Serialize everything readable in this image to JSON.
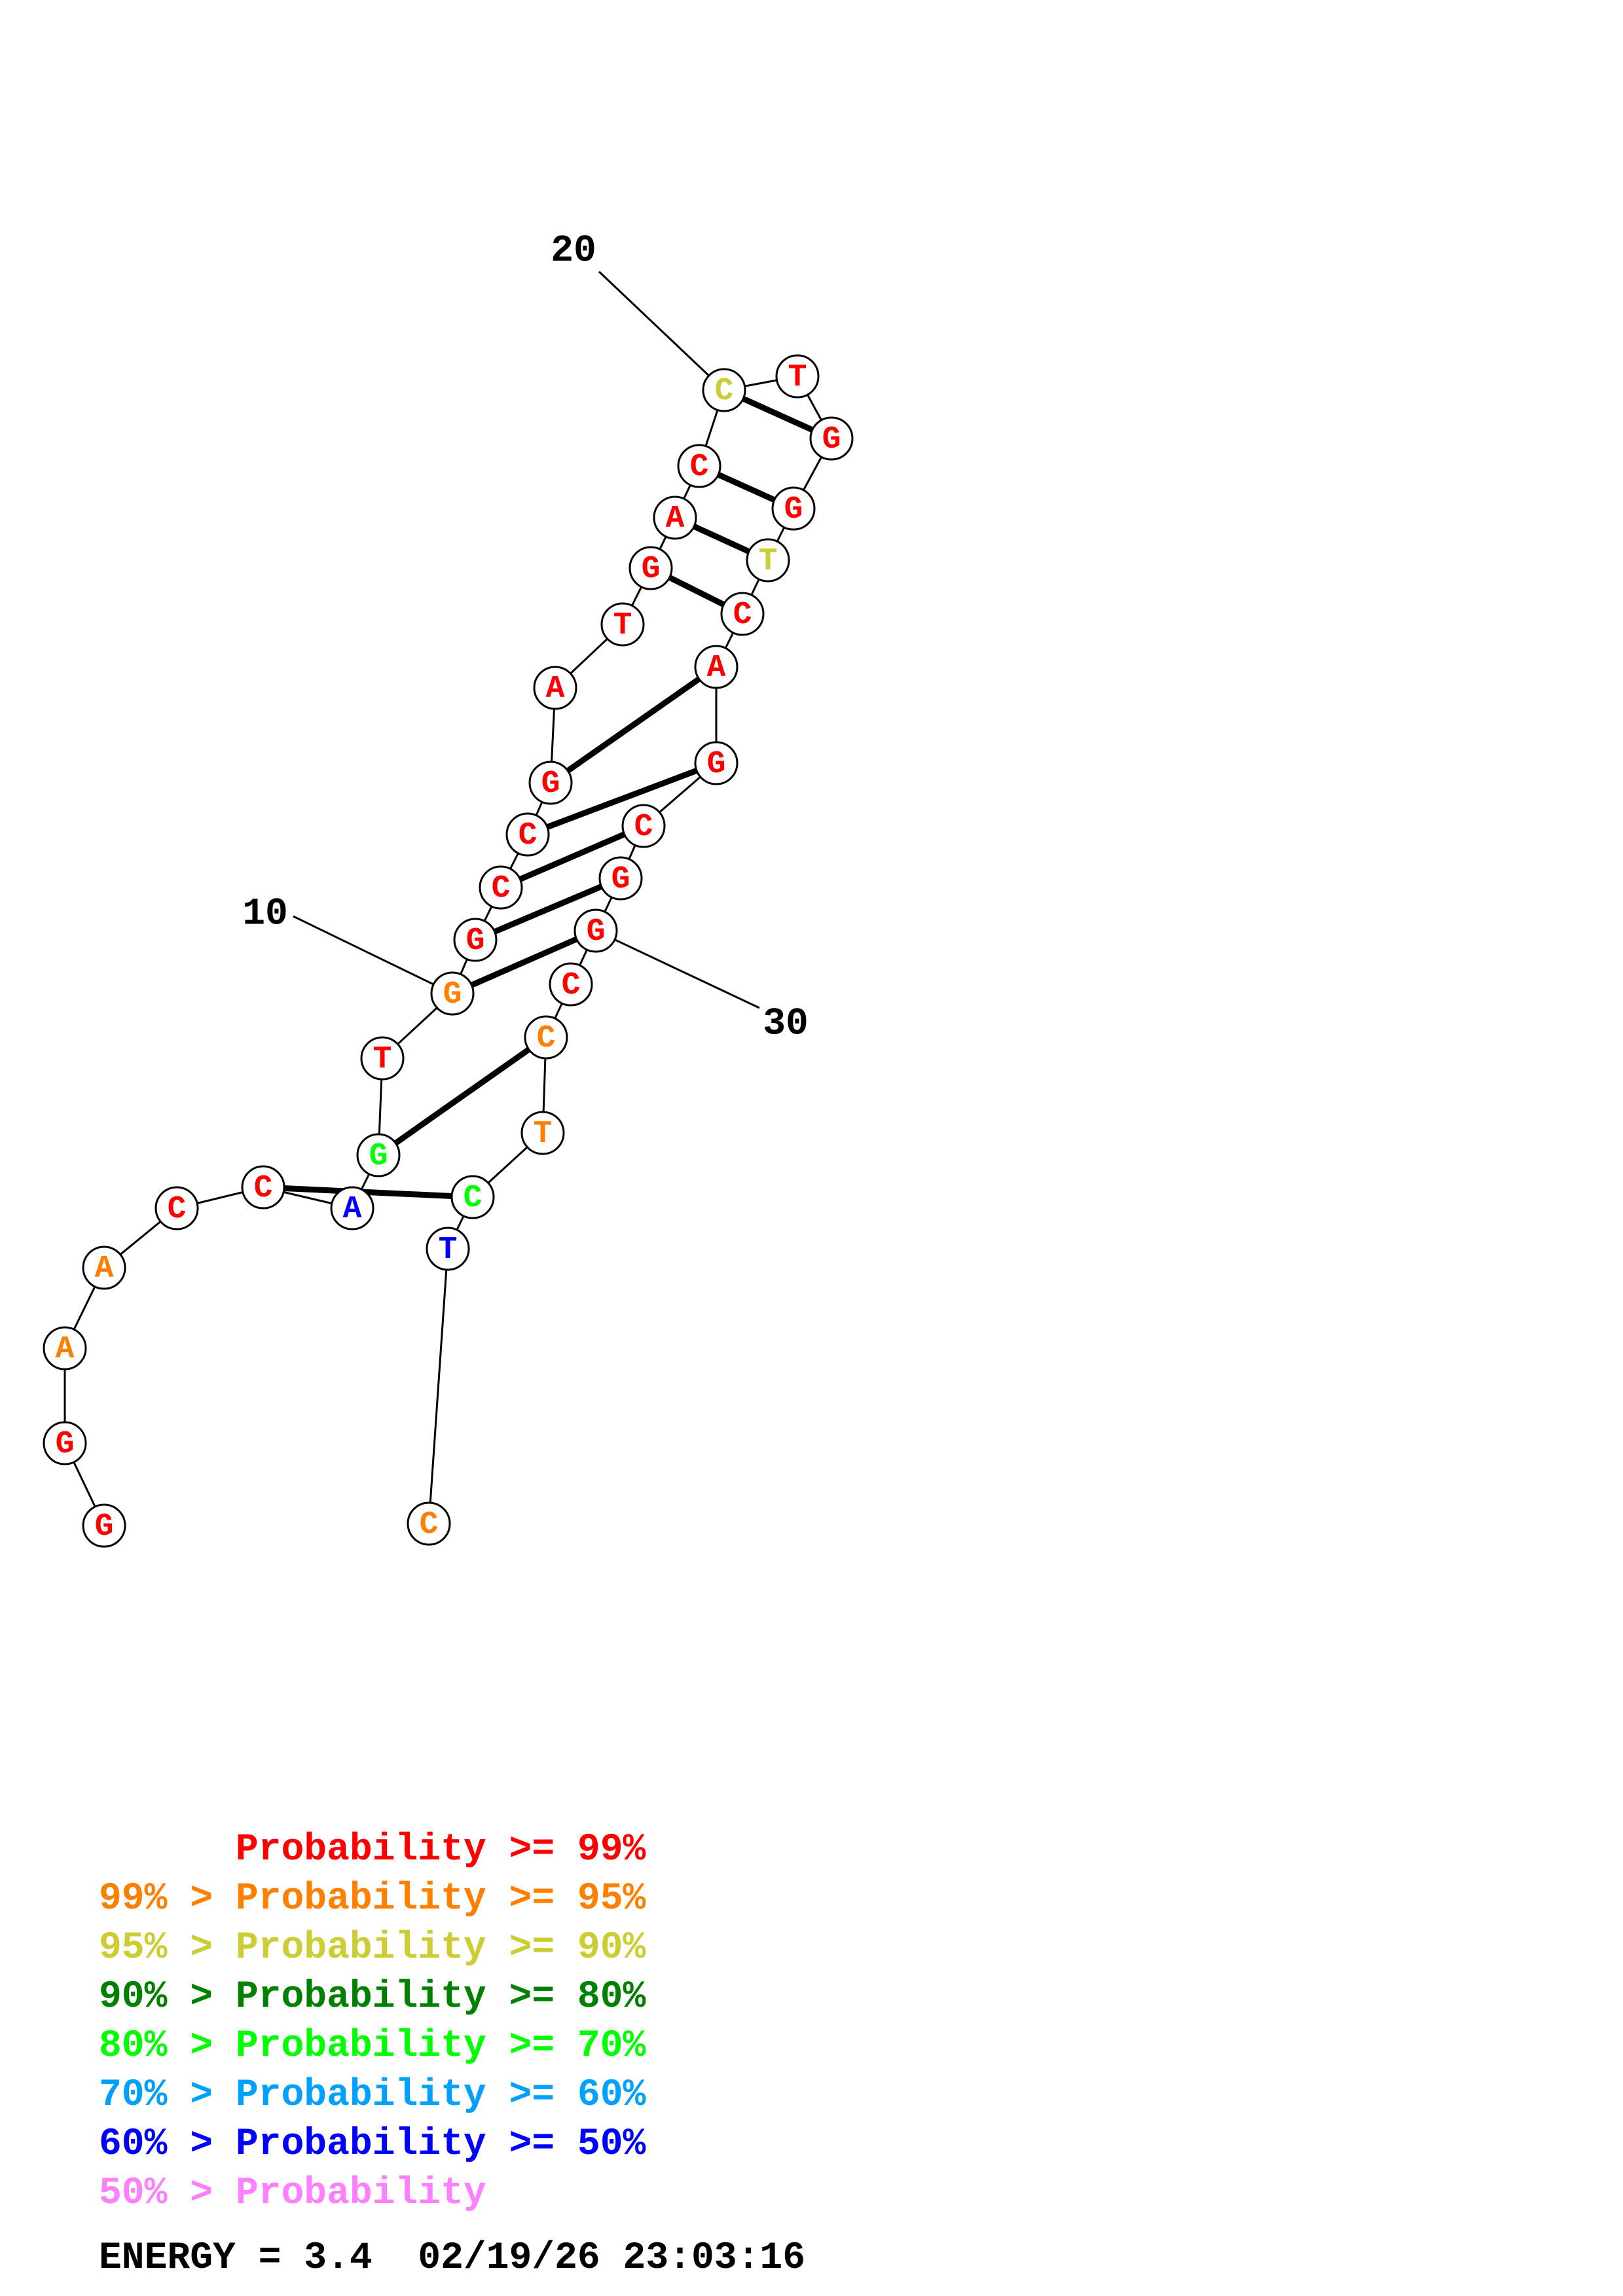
{
  "structure": {
    "sequence": [
      "G",
      "G",
      "A",
      "A",
      "C",
      "C",
      "A",
      "G",
      "T",
      "G",
      "G",
      "C",
      "C",
      "G",
      "A",
      "T",
      "G",
      "A",
      "C",
      "C",
      "T",
      "G",
      "G",
      "T",
      "C",
      "A",
      "G",
      "C",
      "G",
      "G",
      "C",
      "C",
      "T",
      "C",
      "T",
      "C"
    ],
    "pairs": [
      [
        6,
        34
      ],
      [
        8,
        32
      ],
      [
        10,
        30
      ],
      [
        11,
        29
      ],
      [
        12,
        28
      ],
      [
        13,
        27
      ],
      [
        14,
        26
      ],
      [
        17,
        25
      ],
      [
        18,
        24
      ],
      [
        19,
        23
      ],
      [
        20,
        22
      ]
    ],
    "index_labels": [
      {
        "index": 10,
        "text": "10"
      },
      {
        "index": 20,
        "text": "20"
      },
      {
        "index": 30,
        "text": "30"
      }
    ],
    "probability_colors": [
      "red",
      "red",
      "orange",
      "orange",
      "red",
      "red",
      "blue",
      "green",
      "red",
      "orange",
      "red",
      "red",
      "red",
      "red",
      "red",
      "red",
      "red",
      "red",
      "red",
      "yellow",
      "red",
      "red",
      "red",
      "yellow",
      "red",
      "red",
      "red",
      "red",
      "red",
      "red",
      "red",
      "orange",
      "orange",
      "green",
      "blue",
      "orange"
    ]
  },
  "colors": {
    "red": "#ff0000",
    "orange": "#ff8000",
    "yellow": "#cccc33",
    "darkgreen": "#008000",
    "green": "#00ff00",
    "lightblue": "#00a0ff",
    "blue": "#0000ff",
    "pink": "#ff80ff"
  },
  "legend": [
    {
      "prefix": "      ",
      "label": "Probability >= 99%",
      "color": "#ff0000"
    },
    {
      "prefix": "99% > ",
      "label": "Probability >= 95%",
      "color": "#ff8000"
    },
    {
      "prefix": "95% > ",
      "label": "Probability >= 90%",
      "color": "#cccc33"
    },
    {
      "prefix": "90% > ",
      "label": "Probability >= 80%",
      "color": "#008000"
    },
    {
      "prefix": "80% > ",
      "label": "Probability >= 70%",
      "color": "#00ff00"
    },
    {
      "prefix": "70% > ",
      "label": "Probability >= 60%",
      "color": "#00a0ff"
    },
    {
      "prefix": "60% > ",
      "label": "Probability >= 50%",
      "color": "#0000ff"
    },
    {
      "prefix": "50% > ",
      "label": "Probability",
      "color": "#ff80ff"
    }
  ],
  "energy": {
    "label": "ENERGY = 3.4",
    "timestamp": "02/19/26 23:03:16"
  }
}
